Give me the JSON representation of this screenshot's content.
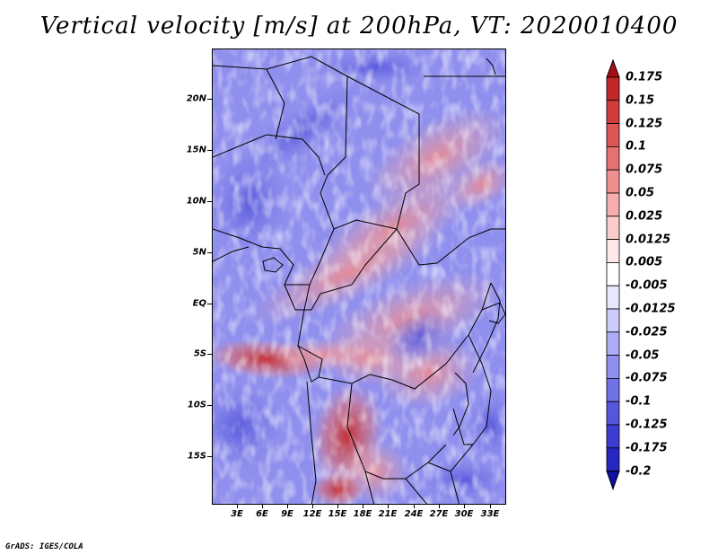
{
  "title": "Vertical velocity [m/s] at 200hPa, VT: 2020010400",
  "footer": "GrADS: IGES/COLA",
  "y_axis_labels": [
    "20N",
    "15N",
    "10N",
    "5N",
    "EQ",
    "5S",
    "10S",
    "15S"
  ],
  "x_axis_labels": [
    "3E",
    "6E",
    "9E",
    "12E",
    "15E",
    "18E",
    "21E",
    "24E",
    "27E",
    "30E",
    "33E"
  ],
  "colorbar": {
    "labels": [
      "0.175",
      "0.15",
      "0.125",
      "0.1",
      "0.075",
      "0.05",
      "0.025",
      "0.0125",
      "0.005",
      "-0.005",
      "-0.0125",
      "-0.025",
      "-0.05",
      "-0.075",
      "-0.1",
      "-0.125",
      "-0.175",
      "-0.2"
    ],
    "colors": [
      "#a50f15",
      "#c0262a",
      "#d03c3c",
      "#dd5555",
      "#e77272",
      "#ef9090",
      "#f5adad",
      "#facccc",
      "#fde8e8",
      "#ffffff",
      "#e8e8fd",
      "#ccccfa",
      "#adadf5",
      "#9090ef",
      "#7272e7",
      "#5555dd",
      "#3c3cd0",
      "#2626c0",
      "#0f0fa5"
    ]
  }
}
